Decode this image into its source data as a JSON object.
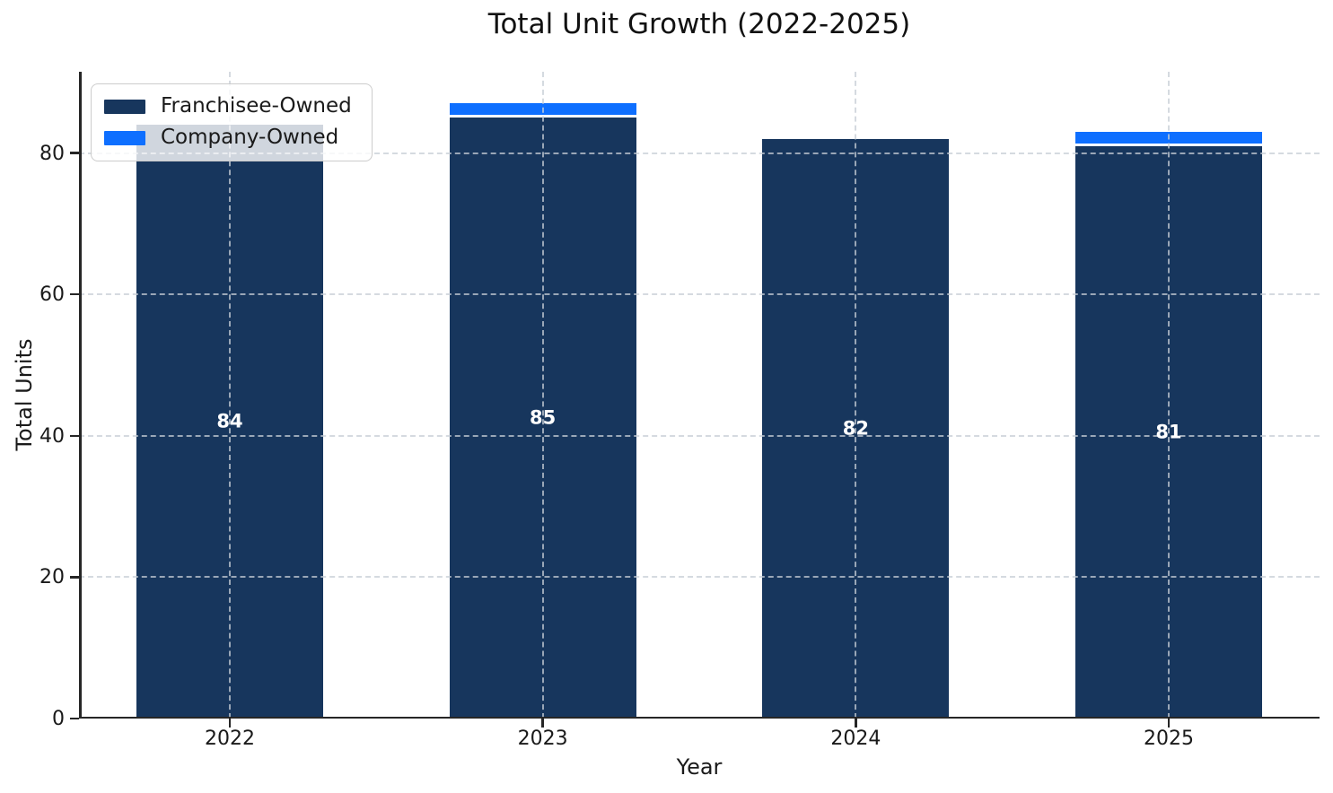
{
  "chart_data": {
    "type": "bar",
    "stacked": true,
    "title": "Total Unit Growth (2022-2025)",
    "xlabel": "Year",
    "ylabel": "Total Units",
    "categories": [
      "2022",
      "2023",
      "2024",
      "2025"
    ],
    "series": [
      {
        "name": "Franchisee-Owned",
        "color": "#17365d",
        "values": [
          84,
          85,
          82,
          81
        ]
      },
      {
        "name": "Company-Owned",
        "color": "#0e6fff",
        "values": [
          0,
          2,
          0,
          2
        ]
      }
    ],
    "bar_labels": [
      "84",
      "85",
      "82",
      "81"
    ],
    "totals": [
      84,
      87,
      82,
      83
    ],
    "ylim": [
      0,
      91.5
    ],
    "yticks": [
      0,
      20,
      40,
      60,
      80
    ],
    "grid": {
      "style": "dashed",
      "axes": "both",
      "drawn_over_bars": true
    },
    "legend": {
      "position": "upper-left",
      "entries": [
        "Franchisee-Owned",
        "Company-Owned"
      ]
    },
    "colors": {
      "axis": "#262626",
      "grid": "#c7ced6",
      "bar_label_text": "#ffffff"
    }
  }
}
